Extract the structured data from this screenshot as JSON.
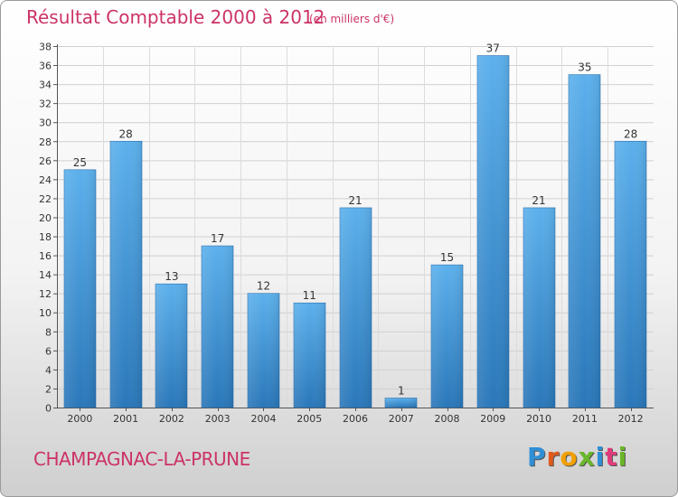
{
  "header": {
    "title": "Résultat Comptable 2000 à 2012",
    "subtitle": "(en milliers d'€)"
  },
  "footer": {
    "commune": "CHAMPAGNAC-LA-PRUNE",
    "logo_text": "Proxiti",
    "logo_colors": [
      "#2f8fd6",
      "#e05a1c",
      "#f2a000",
      "#6ab72a",
      "#2f8fd6",
      "#e03a7a",
      "#6ab72a"
    ]
  },
  "chart_data": {
    "type": "bar",
    "title": "Résultat Comptable 2000 à 2012",
    "subtitle": "(en milliers d'€)",
    "xlabel": "",
    "ylabel": "",
    "categories": [
      "2000",
      "2001",
      "2002",
      "2003",
      "2004",
      "2005",
      "2006",
      "2007",
      "2008",
      "2009",
      "2010",
      "2011",
      "2012"
    ],
    "values": [
      25,
      28,
      13,
      17,
      12,
      11,
      21,
      1,
      15,
      37,
      21,
      35,
      28
    ],
    "ylim": [
      0,
      38
    ],
    "yticks": [
      0,
      2,
      4,
      6,
      8,
      10,
      12,
      14,
      16,
      18,
      20,
      22,
      24,
      26,
      28,
      30,
      32,
      34,
      36,
      38
    ],
    "grid": true,
    "bar_color": "#3a8fd4",
    "bar_color_light": "#5fb0ec",
    "bar_color_dark": "#2a76b8"
  }
}
